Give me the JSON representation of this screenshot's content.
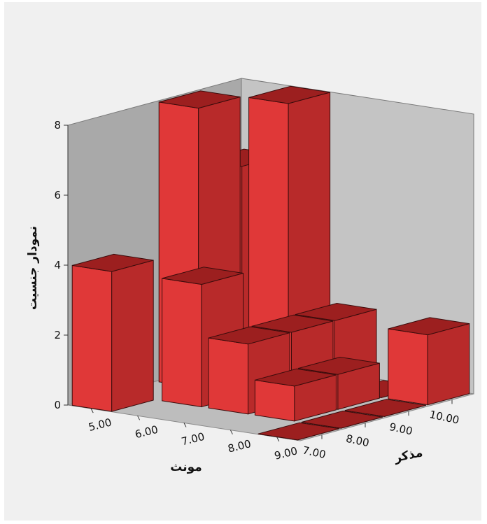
{
  "chart_data": {
    "type": "bar3d",
    "title": "",
    "ylabel": "نمودار جنسیت",
    "xlabel": "مونث",
    "zlabel": "مذکر",
    "x_categories": [
      "7.00",
      "8.00",
      "9.00",
      "10.00"
    ],
    "z_categories": [
      "9.00",
      "8.00",
      "7.00",
      "6.00",
      "5.00"
    ],
    "ylim": [
      0,
      8
    ],
    "yticks": [
      "0",
      "2",
      "4",
      "6",
      "8"
    ],
    "bars": [
      {
        "x": "7.00",
        "z": "5.00",
        "value": 4
      },
      {
        "x": "8.00",
        "z": "6.00",
        "value": 3.5
      },
      {
        "x": "8.00",
        "z": "8.00",
        "value": 1
      },
      {
        "x": "9.00",
        "z": "5.00",
        "value": 8
      },
      {
        "x": "10.00",
        "z": "5.00",
        "value": 6
      },
      {
        "x": "10.00",
        "z": "6.00",
        "value": 8
      },
      {
        "x": "10.00",
        "z": "9.00",
        "value": 2
      },
      {
        "x": "9.00",
        "z": "7.00",
        "value": 2
      },
      {
        "x": "8.00",
        "z": "9.00",
        "value": 0
      },
      {
        "x": "10.00",
        "z": "8.00",
        "value": 0
      },
      {
        "x": "9.00",
        "z": "8.00",
        "value": 1
      },
      {
        "x": "8.00",
        "z": "7.00",
        "value": 2
      },
      {
        "x": "9.00",
        "z": "9.00",
        "value": 0
      },
      {
        "x": "7.00",
        "z": "9.00",
        "value": 0
      },
      {
        "x": "10.00",
        "z": "7.00",
        "value": 2
      }
    ],
    "bar_color": "#e03838",
    "grid": false
  }
}
